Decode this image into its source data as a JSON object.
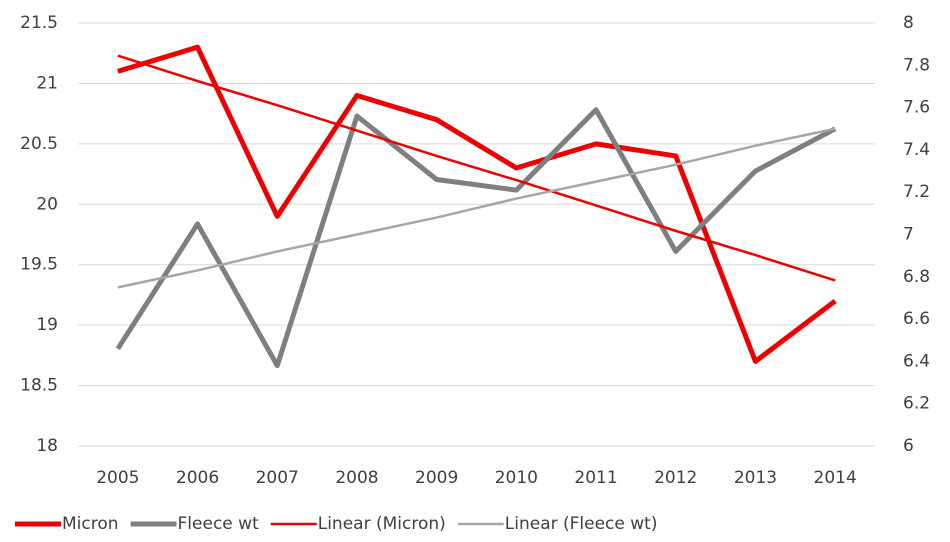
{
  "chart_data": {
    "type": "line",
    "categories": [
      "2005",
      "2006",
      "2007",
      "2008",
      "2009",
      "2010",
      "2011",
      "2012",
      "2013",
      "2014"
    ],
    "series": [
      {
        "name": "Micron",
        "color": "#ee0000",
        "width": 5,
        "values": [
          21.1,
          21.3,
          19.9,
          20.9,
          20.7,
          20.3,
          20.5,
          20.4,
          18.7,
          19.2
        ]
      },
      {
        "name": "Fleece wt",
        "color": "#7f7f7f",
        "width": 5,
        "axis": "y2",
        "values": [
          6.46,
          7.05,
          6.38,
          7.56,
          7.26,
          7.21,
          7.59,
          6.92,
          7.3,
          7.5
        ]
      },
      {
        "name": "Linear (Micron)",
        "color": "#ee0000",
        "width": 2.5,
        "values": [
          21.23,
          21.02,
          20.82,
          20.61,
          20.4,
          20.2,
          19.99,
          19.78,
          19.58,
          19.37
        ]
      },
      {
        "name": "Linear (Fleece wt)",
        "color": "#a6a6a6",
        "width": 2.5,
        "axis": "y2",
        "values": [
          6.75,
          6.83,
          6.92,
          7.0,
          7.08,
          7.17,
          7.25,
          7.33,
          7.42,
          7.5
        ]
      }
    ],
    "ylim": [
      18,
      21.5
    ],
    "yticks": [
      18,
      18.5,
      19,
      19.5,
      20,
      20.5,
      21,
      21.5
    ],
    "y2lim": [
      6,
      8
    ],
    "y2ticks": [
      6,
      6.2,
      6.4,
      6.6,
      6.8,
      7,
      7.2,
      7.4,
      7.6,
      7.8,
      8
    ],
    "grid": true,
    "legend": "bottom"
  }
}
